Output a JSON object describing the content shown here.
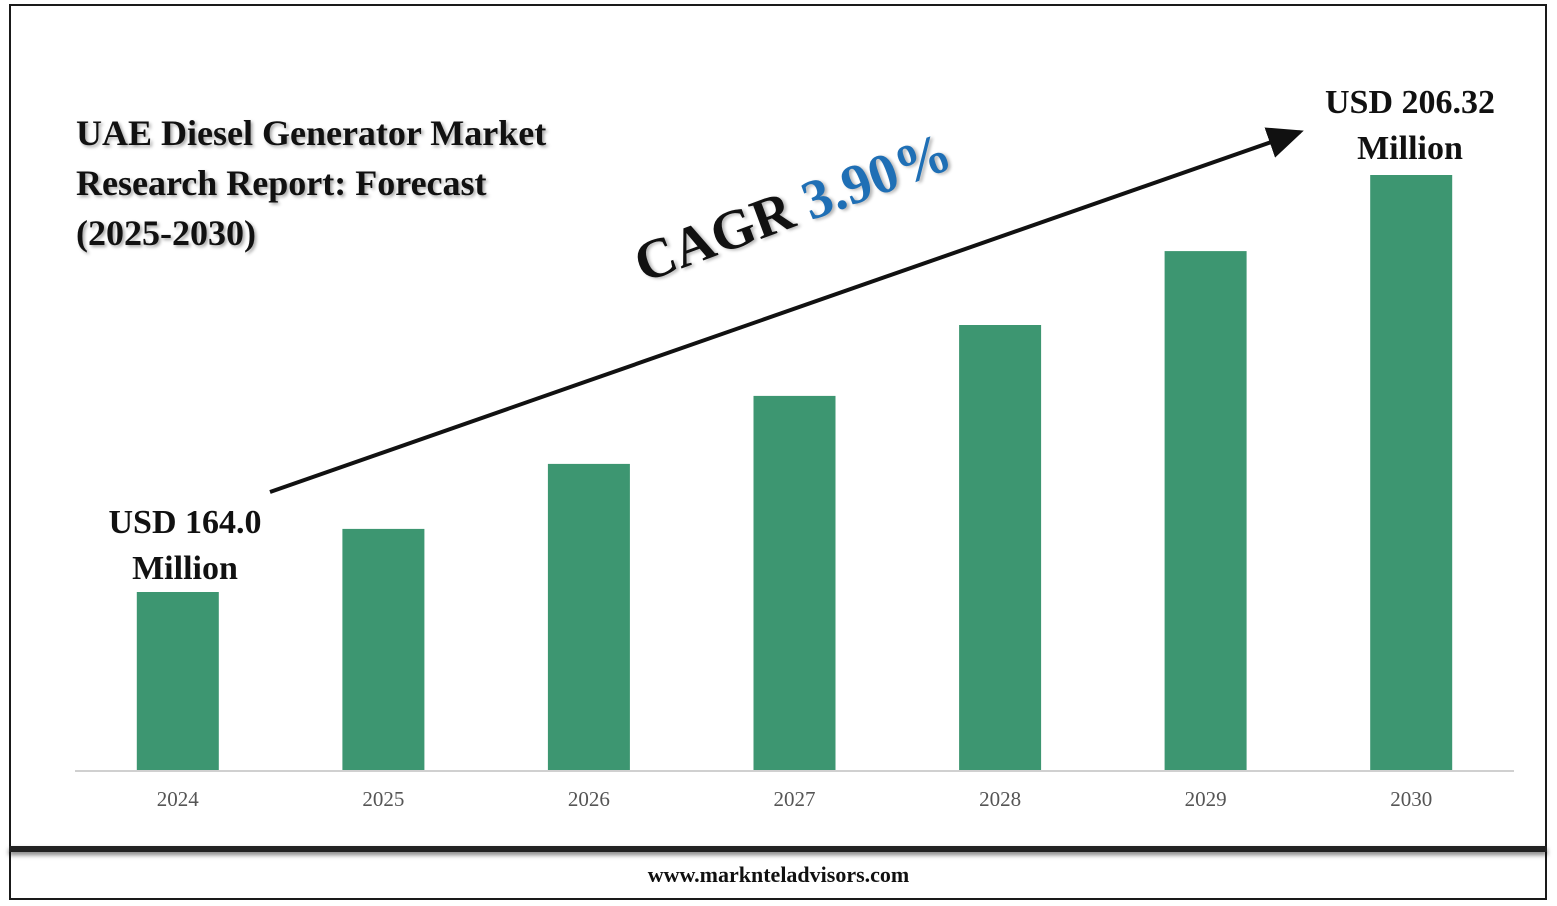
{
  "chart_data": {
    "type": "bar",
    "title": [
      "UAE Diesel Generator Market",
      "Research Report: Forecast",
      "(2025-2030)"
    ],
    "categories": [
      "2024",
      "2025",
      "2026",
      "2027",
      "2028",
      "2029",
      "2030"
    ],
    "values": [
      164.0,
      170.4,
      177.0,
      183.9,
      191.1,
      198.6,
      206.32
    ],
    "unit": "USD Million",
    "bar_color": "#3d9671",
    "start_label": [
      "USD 164.0",
      "Million"
    ],
    "end_label": [
      "USD 206.32",
      "Million"
    ],
    "cagr_text": "CAGR",
    "cagr_value": "3.90%",
    "cagr_color": "#1f6fb5",
    "grid": false,
    "legend": "none"
  },
  "footer": {
    "website": "www.marknteladvisors.com"
  }
}
